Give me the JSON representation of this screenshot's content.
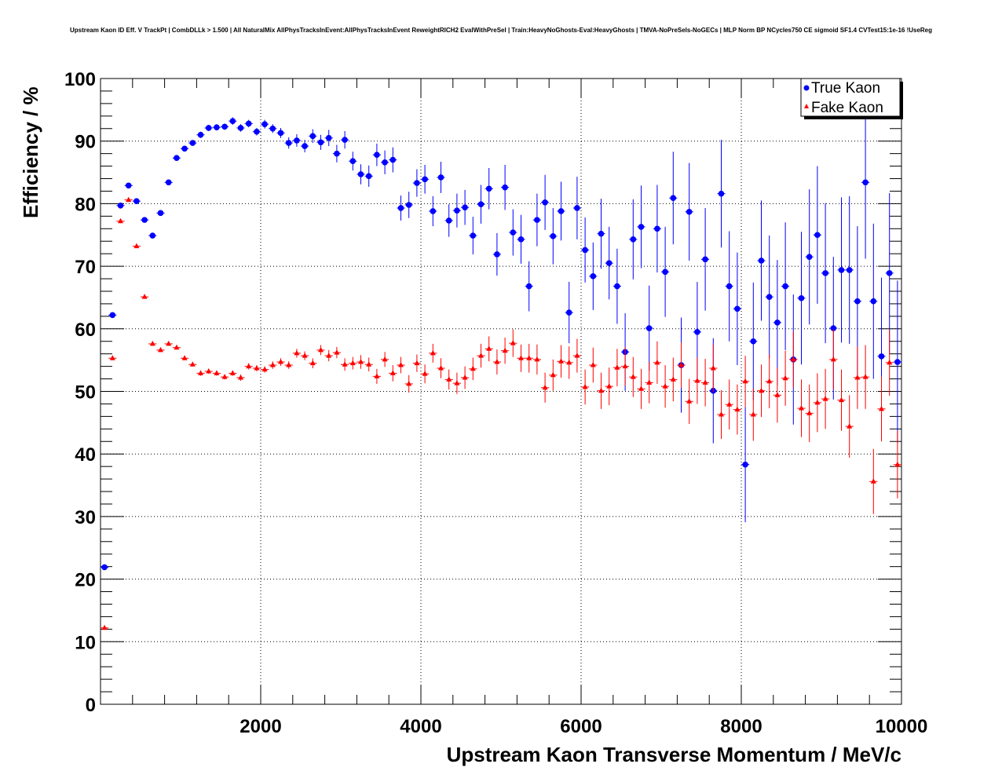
{
  "chart_data": {
    "type": "scatter",
    "title": "Upstream Kaon ID Eff. V TrackPt | CombDLLk > 1.500 | All NaturalMix AllPhysTracksInEvent:AllPhysTracksInEvent ReweightRICH2 EvalWithPreSel | Train:HeavyNoGhosts-Eval:HeavyGhosts | TMVA-NoPreSels-NoGECs | MLP Norm BP NCycles750 CE sigmoid SF1.4 CVTest15:1e-16 !UseReg",
    "xlabel": "Upstream Kaon Transverse Momentum / MeV/c",
    "ylabel": "Efficiency / %",
    "xlim": [
      0,
      10000
    ],
    "ylim": [
      0,
      100
    ],
    "xticks": [
      "2000",
      "4000",
      "6000",
      "8000",
      "10000"
    ],
    "yticks": [
      "0",
      "10",
      "20",
      "30",
      "40",
      "50",
      "60",
      "70",
      "80",
      "90",
      "100"
    ],
    "grid": true,
    "legend_position": "top-right",
    "bin_width": 100,
    "series": [
      {
        "name": "True Kaon",
        "color": "#0000ff",
        "marker": "circle",
        "values": [
          21.9,
          62.2,
          79.7,
          82.9,
          80.4,
          77.4,
          74.9,
          78.5,
          83.4,
          87.3,
          88.8,
          89.7,
          91.0,
          92.1,
          92.2,
          92.3,
          93.2,
          92.1,
          92.8,
          91.5,
          92.7,
          92.0,
          91.3,
          89.7,
          90.1,
          89.2,
          90.8,
          89.8,
          90.5,
          88.0,
          90.2,
          86.8,
          84.7,
          84.4,
          87.8,
          86.6,
          87.0,
          79.3,
          79.8,
          83.3,
          83.9,
          78.8,
          84.2,
          77.3,
          78.9,
          79.4,
          74.9,
          79.9,
          82.4,
          71.9,
          82.6,
          75.4,
          74.3,
          66.8,
          77.4,
          80.2,
          74.8,
          78.8,
          62.6,
          79.3,
          72.6,
          68.4,
          75.2,
          70.5,
          66.8,
          56.3,
          74.3,
          76.3,
          60.1,
          76.0,
          69.1,
          80.9,
          54.2,
          78.7,
          59.5,
          71.1,
          50.1,
          81.6,
          66.8,
          63.2,
          38.3,
          58.0,
          70.9,
          65.1,
          61.0,
          66.8,
          55.1,
          64.9,
          71.5,
          75.0,
          68.9,
          60.1,
          69.4,
          69.4,
          64.4,
          83.4,
          64.4,
          55.6,
          68.9,
          54.7
        ],
        "errors": [
          0.3,
          0.4,
          0.4,
          0.4,
          0.4,
          0.4,
          0.4,
          0.4,
          0.4,
          0.4,
          0.4,
          0.4,
          0.5,
          0.5,
          0.5,
          0.5,
          0.6,
          0.6,
          0.6,
          0.6,
          0.7,
          0.7,
          0.8,
          0.9,
          1.0,
          1.0,
          1.1,
          1.2,
          1.3,
          1.4,
          1.4,
          1.5,
          1.6,
          1.7,
          1.8,
          1.9,
          2.0,
          2.0,
          2.1,
          2.2,
          2.3,
          2.4,
          2.5,
          2.6,
          2.7,
          2.8,
          3.0,
          3.1,
          3.3,
          3.4,
          3.6,
          3.7,
          3.9,
          4.0,
          4.2,
          4.4,
          4.5,
          4.7,
          4.9,
          5.0,
          5.2,
          5.4,
          5.6,
          5.8,
          6.0,
          6.2,
          6.4,
          6.6,
          6.8,
          7.0,
          7.2,
          7.4,
          7.6,
          7.8,
          8.0,
          8.2,
          8.4,
          8.6,
          8.8,
          9.0,
          9.2,
          9.4,
          9.6,
          9.8,
          10.0,
          10.2,
          10.4,
          10.6,
          10.8,
          11.0,
          11.2,
          11.4,
          11.6,
          11.8,
          12.0,
          12.2,
          12.4,
          12.6,
          12.8,
          13.0
        ]
      },
      {
        "name": "Fake Kaon",
        "color": "#ff0000",
        "marker": "triangle",
        "values": [
          12.2,
          55.3,
          77.2,
          80.6,
          73.2,
          65.1,
          57.6,
          56.6,
          57.6,
          57.0,
          55.3,
          54.3,
          52.9,
          53.2,
          52.9,
          52.3,
          52.9,
          52.2,
          54.0,
          53.7,
          53.5,
          54.2,
          54.7,
          54.2,
          56.1,
          55.7,
          54.5,
          56.6,
          55.7,
          56.2,
          54.3,
          54.5,
          54.7,
          54.3,
          52.4,
          55.1,
          52.9,
          54.2,
          51.2,
          54.5,
          52.8,
          56.1,
          53.7,
          51.9,
          51.3,
          52.2,
          53.6,
          55.7,
          56.8,
          54.7,
          56.5,
          57.7,
          55.3,
          55.3,
          55.1,
          50.6,
          52.6,
          54.8,
          54.6,
          55.7,
          50.7,
          54.2,
          50.1,
          50.8,
          53.8,
          54.0,
          52.3,
          50.4,
          51.4,
          54.6,
          50.8,
          51.9,
          54.2,
          48.4,
          51.7,
          51.4,
          53.7,
          46.3,
          47.9,
          47.1,
          51.6,
          46.3,
          50.1,
          51.6,
          49.4,
          52.1,
          55.1,
          47.3,
          46.5,
          48.2,
          48.8,
          55.1,
          48.6,
          44.4,
          52.2,
          52.3,
          35.6,
          47.2,
          54.6,
          38.3
        ],
        "errors": [
          0.2,
          0.3,
          0.3,
          0.3,
          0.3,
          0.3,
          0.3,
          0.3,
          0.3,
          0.3,
          0.3,
          0.3,
          0.4,
          0.4,
          0.4,
          0.4,
          0.4,
          0.5,
          0.5,
          0.5,
          0.5,
          0.6,
          0.6,
          0.6,
          0.7,
          0.7,
          0.8,
          0.8,
          0.9,
          0.9,
          1.0,
          1.0,
          1.1,
          1.1,
          1.2,
          1.2,
          1.3,
          1.3,
          1.4,
          1.4,
          1.5,
          1.5,
          1.6,
          1.6,
          1.7,
          1.8,
          1.8,
          1.9,
          2.0,
          2.0,
          2.1,
          2.2,
          2.2,
          2.3,
          2.4,
          2.4,
          2.5,
          2.6,
          2.6,
          2.7,
          2.8,
          2.8,
          2.9,
          3.0,
          3.0,
          3.1,
          3.2,
          3.2,
          3.3,
          3.4,
          3.4,
          3.5,
          3.6,
          3.6,
          3.7,
          3.8,
          3.8,
          3.9,
          4.0,
          4.0,
          4.1,
          4.2,
          4.2,
          4.3,
          4.4,
          4.4,
          4.5,
          4.6,
          4.6,
          4.7,
          4.8,
          4.8,
          4.9,
          5.0,
          5.0,
          5.1,
          5.2,
          5.2,
          5.3,
          5.4
        ]
      }
    ]
  }
}
